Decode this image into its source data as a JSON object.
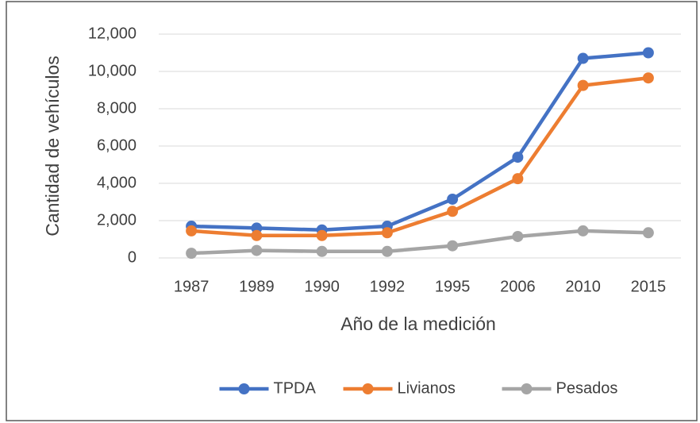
{
  "chart_data": {
    "type": "line",
    "x_label": "Año de la medición",
    "y_label": "Cantidad de vehículos",
    "categories": [
      "1987",
      "1989",
      "1990",
      "1992",
      "1995",
      "2006",
      "2010",
      "2015"
    ],
    "series": [
      {
        "name": "TPDA",
        "color": "#4472c4",
        "values": [
          1700,
          1600,
          1500,
          1700,
          3150,
          5400,
          10700,
          11000
        ]
      },
      {
        "name": "Livianos",
        "color": "#ed7d31",
        "values": [
          1450,
          1200,
          1200,
          1350,
          2500,
          4250,
          9250,
          9650
        ]
      },
      {
        "name": "Pesados",
        "color": "#a5a5a5",
        "values": [
          250,
          400,
          350,
          350,
          650,
          1150,
          1450,
          1350
        ]
      }
    ],
    "ylim": [
      0,
      12000
    ],
    "yticks": [
      0,
      {
        "value": 2000,
        "label": "2,000"
      },
      {
        "value": 4000,
        "label": "4,000"
      },
      {
        "value": 6000,
        "label": "6,000"
      },
      {
        "value": 8000,
        "label": "8,000"
      },
      {
        "value": 10000,
        "label": "10,000"
      },
      {
        "value": 12000,
        "label": "12,000"
      }
    ],
    "grid": true,
    "legend": "bottom"
  }
}
